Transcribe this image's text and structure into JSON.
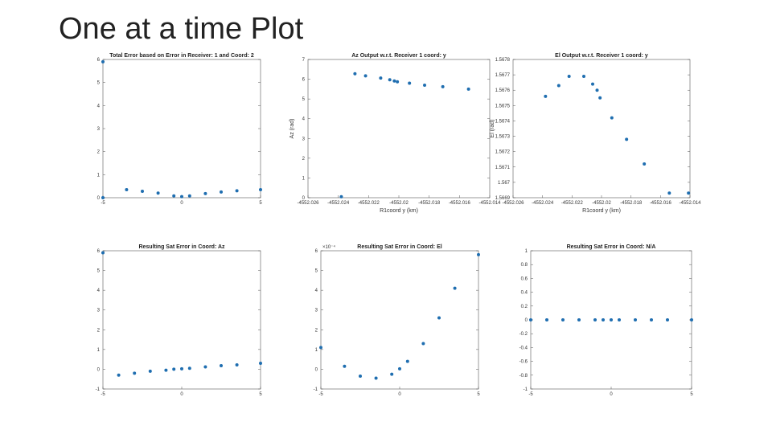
{
  "slide": {
    "title": "One at a time Plot"
  },
  "colors": {
    "marker": "#1f6eb0",
    "axis": "#555555"
  },
  "chart_data": [
    {
      "type": "scatter",
      "title": "Total Error based on Error in Receiver: 1 and Coord: 2",
      "xlabel": "",
      "ylabel": "",
      "xlim": [
        -5,
        5
      ],
      "ylim": [
        0,
        6
      ],
      "xticks": [
        -5,
        0,
        5
      ],
      "xtick_labels": [
        "-5",
        "0",
        "5"
      ],
      "yticks": [
        0,
        1,
        2,
        3,
        4,
        5,
        6
      ],
      "ytick_labels": [
        "0",
        "1",
        "2",
        "3",
        "4",
        "5",
        "6"
      ],
      "exponent": "",
      "x": [
        -5,
        -5,
        -3.5,
        -2.5,
        -1.5,
        -0.5,
        0,
        0.5,
        1.5,
        2.5,
        3.5,
        5
      ],
      "y": [
        5.9,
        0,
        0.35,
        0.28,
        0.2,
        0.08,
        0.05,
        0.08,
        0.18,
        0.25,
        0.3,
        0.35
      ]
    },
    {
      "type": "scatter",
      "title": "Az Output w.r.t. Receiver 1 coord: y",
      "xlabel": "R1coord y (km)",
      "ylabel": "Az (rad)",
      "xlim": [
        -4552.026,
        -4552.014
      ],
      "ylim": [
        0,
        7
      ],
      "xticks": [
        -4552.026,
        -4552.024,
        -4552.022,
        -4552.02,
        -4552.018,
        -4552.016,
        -4552.014
      ],
      "xtick_labels": [
        "-4552.026",
        "-4552.024",
        "-4552.022",
        "-4552.02",
        "-4552.018",
        "-4552.016",
        "-4552.014"
      ],
      "yticks": [
        0,
        1,
        2,
        3,
        4,
        5,
        6,
        7
      ],
      "ytick_labels": [
        "0",
        "1",
        "2",
        "3",
        "4",
        "5",
        "6",
        "7"
      ],
      "exponent": "",
      "x": [
        -4552.0238,
        -4552.0229,
        -4552.0222,
        -4552.0212,
        -4552.0206,
        -4552.0203,
        -4552.0201,
        -4552.0193,
        -4552.0183,
        -4552.0171,
        -4552.0154
      ],
      "y": [
        0.05,
        6.28,
        6.17,
        6.06,
        5.97,
        5.91,
        5.87,
        5.8,
        5.7,
        5.62,
        5.5
      ]
    },
    {
      "type": "scatter",
      "title": "El Output w.r.t. Receiver 1 coord: y",
      "xlabel": "R1coord y (km)",
      "ylabel": "El (rad)",
      "xlim": [
        -4552.026,
        -4552.014
      ],
      "ylim": [
        1.5669,
        1.5678
      ],
      "xticks": [
        -4552.026,
        -4552.024,
        -4552.022,
        -4552.02,
        -4552.018,
        -4552.016,
        -4552.014
      ],
      "xtick_labels": [
        "-4552.026",
        "-4552.024",
        "-4552.022",
        "-4552.02",
        "-4552.018",
        "-4552.016",
        "-4552.014"
      ],
      "yticks": [
        1.5669,
        1.567,
        1.5671,
        1.5672,
        1.5673,
        1.5674,
        1.5675,
        1.5676,
        1.5677,
        1.5678
      ],
      "ytick_labels": [
        "1.5669",
        "1.567",
        "1.5671",
        "1.5672",
        "1.5673",
        "1.5674",
        "1.5675",
        "1.5676",
        "1.5677",
        "1.5678"
      ],
      "exponent": "",
      "x": [
        -4552.0238,
        -4552.0229,
        -4552.0222,
        -4552.0212,
        -4552.0206,
        -4552.0203,
        -4552.0201,
        -4552.0193,
        -4552.0183,
        -4552.0171,
        -4552.0154,
        -4552.0141
      ],
      "y": [
        1.56756,
        1.56763,
        1.56769,
        1.56769,
        1.56764,
        1.5676,
        1.56755,
        1.56742,
        1.56728,
        1.56712,
        1.56693,
        1.56693
      ]
    },
    {
      "type": "scatter",
      "title": "Resulting Sat Error in Coord: Az",
      "xlabel": "",
      "ylabel": "",
      "xlim": [
        -5,
        5
      ],
      "ylim": [
        -1,
        6
      ],
      "xticks": [
        -5,
        0,
        5
      ],
      "xtick_labels": [
        "-5",
        "0",
        "5"
      ],
      "yticks": [
        -1,
        0,
        1,
        2,
        3,
        4,
        5,
        6
      ],
      "ytick_labels": [
        "-1",
        "0",
        "1",
        "2",
        "3",
        "4",
        "5",
        "6"
      ],
      "exponent": "",
      "x": [
        -5,
        -4,
        -3,
        -2,
        -1,
        -0.5,
        0,
        0.5,
        1.5,
        2.5,
        3.5,
        5
      ],
      "y": [
        5.9,
        -0.3,
        -0.2,
        -0.1,
        -0.05,
        0,
        0.02,
        0.05,
        0.12,
        0.18,
        0.22,
        0.3
      ]
    },
    {
      "type": "scatter",
      "title": "Resulting Sat Error in Coord: El",
      "xlabel": "",
      "ylabel": "",
      "xlim": [
        -5,
        5
      ],
      "ylim": [
        -1,
        6
      ],
      "xticks": [
        -5,
        0,
        5
      ],
      "xtick_labels": [
        "-5",
        "0",
        "5"
      ],
      "yticks": [
        -1,
        0,
        1,
        2,
        3,
        4,
        5,
        6
      ],
      "ytick_labels": [
        "-1",
        "0",
        "1",
        "2",
        "3",
        "4",
        "5",
        "6"
      ],
      "exponent": "×10⁻⁴",
      "x": [
        -5,
        -3.5,
        -2.5,
        -1.5,
        -0.5,
        0,
        0.5,
        1.5,
        2.5,
        3.5,
        5
      ],
      "y": [
        1.1,
        0.15,
        -0.35,
        -0.45,
        -0.25,
        0.02,
        0.4,
        1.3,
        2.6,
        4.1,
        5.8
      ]
    },
    {
      "type": "scatter",
      "title": "Resulting Sat Error in Coord: N/A",
      "xlabel": "",
      "ylabel": "",
      "xlim": [
        -5,
        5
      ],
      "ylim": [
        -1,
        1
      ],
      "xticks": [
        -5,
        0,
        5
      ],
      "xtick_labels": [
        "-5",
        "0",
        "5"
      ],
      "yticks": [
        -1,
        -0.8,
        -0.6,
        -0.4,
        -0.2,
        0,
        0.2,
        0.4,
        0.6,
        0.8,
        1
      ],
      "ytick_labels": [
        "-1",
        "-0.8",
        "-0.6",
        "-0.4",
        "-0.2",
        "0",
        "0.2",
        "0.4",
        "0.6",
        "0.8",
        "1"
      ],
      "exponent": "",
      "x": [
        -5,
        -4,
        -3,
        -2,
        -1,
        -0.5,
        0,
        0.5,
        1.5,
        2.5,
        3.5,
        5
      ],
      "y": [
        0,
        0,
        0,
        0,
        0,
        0,
        0,
        0,
        0,
        0,
        0,
        0
      ]
    }
  ]
}
